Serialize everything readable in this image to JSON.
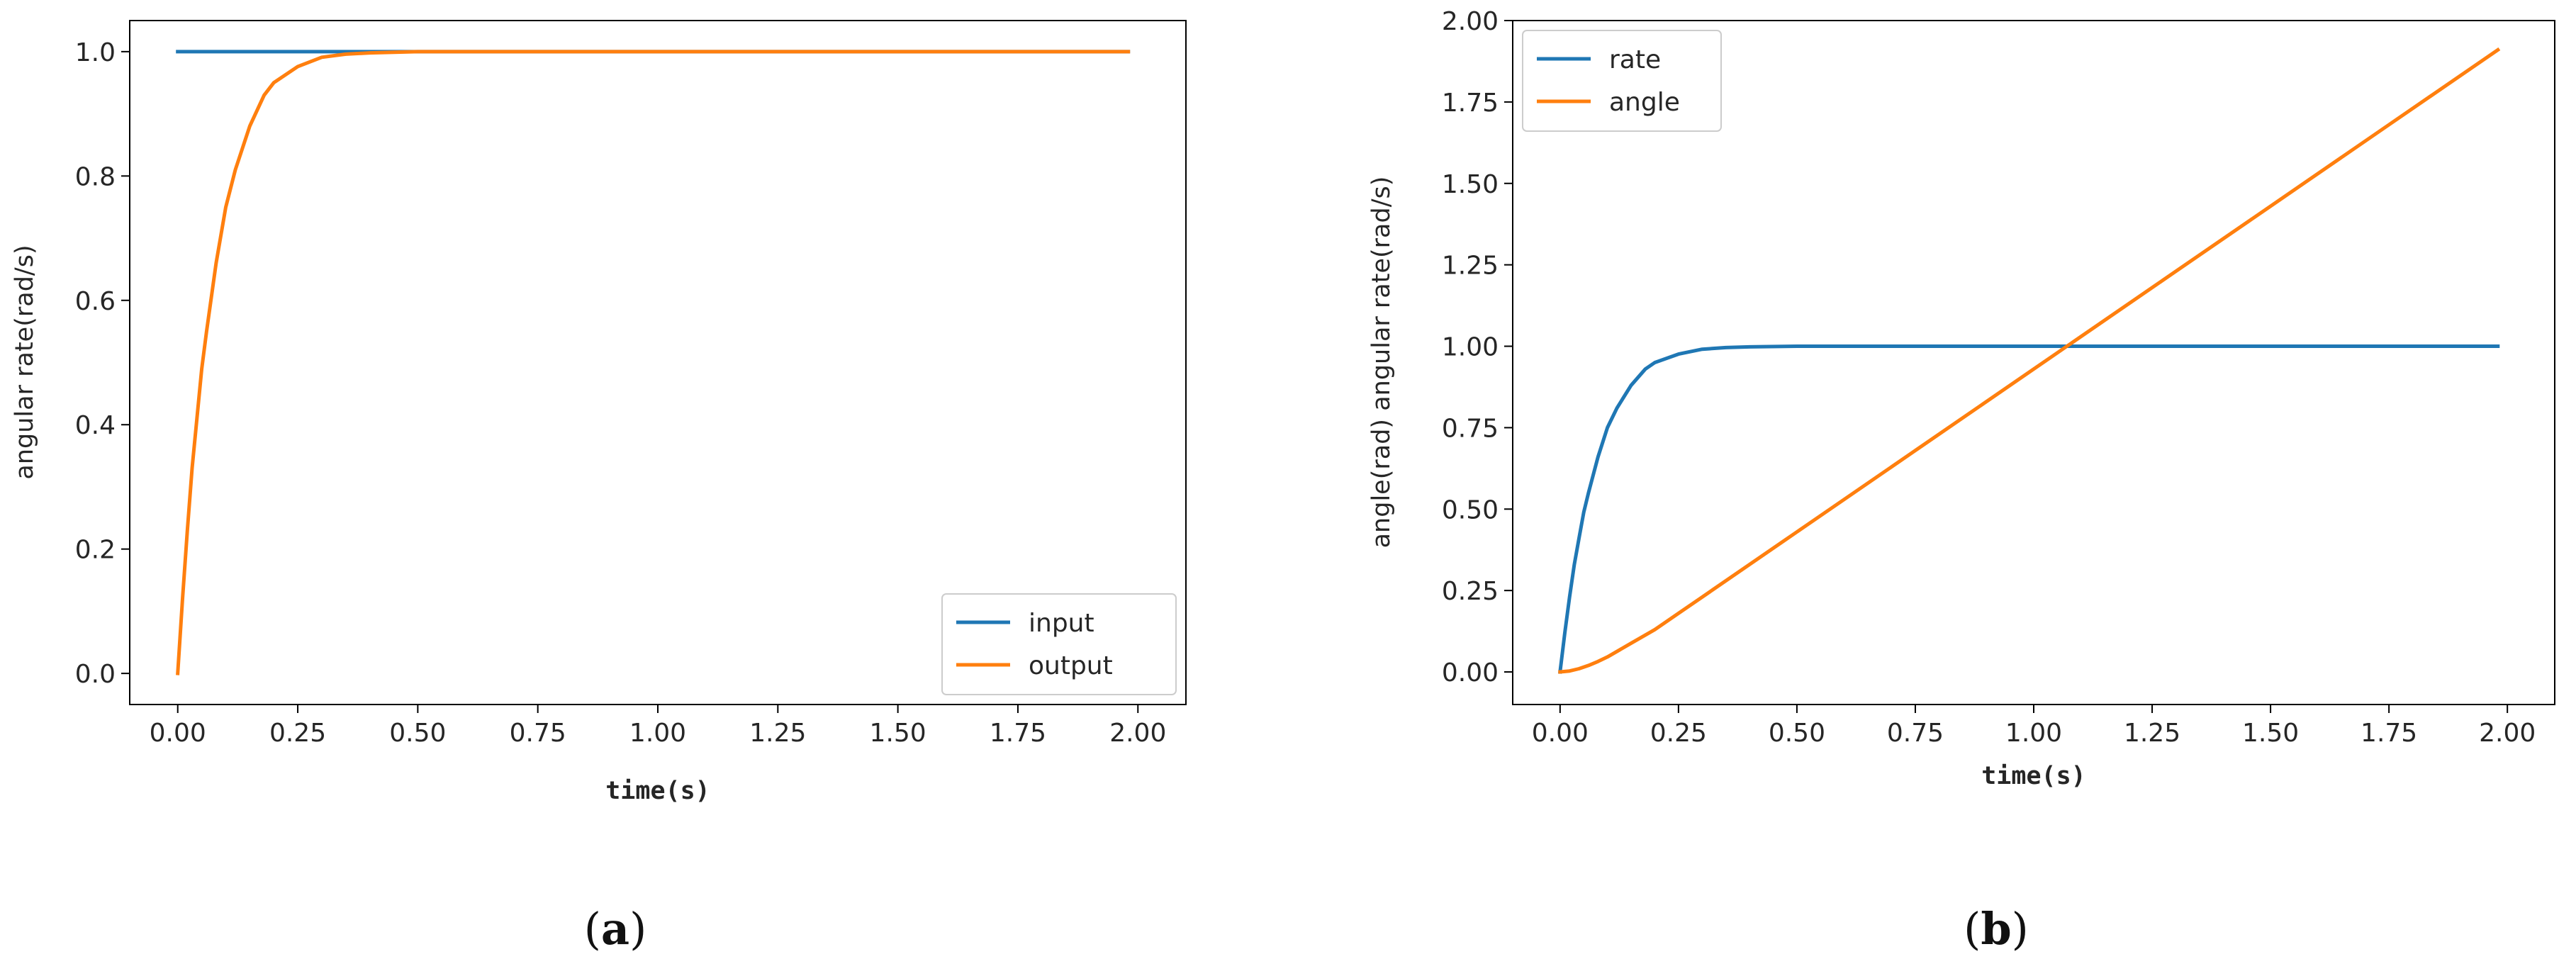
{
  "chart_data": [
    {
      "panel": "(a)",
      "type": "line",
      "title": "",
      "xlabel": "time(s)",
      "ylabel": "angular rate(rad/s)",
      "xlim": [
        -0.1,
        2.1
      ],
      "ylim": [
        -0.05,
        1.05
      ],
      "xticks": [
        0.0,
        0.25,
        0.5,
        0.75,
        1.0,
        1.25,
        1.5,
        1.75,
        2.0
      ],
      "xtick_labels": [
        "0.00",
        "0.25",
        "0.50",
        "0.75",
        "1.00",
        "1.25",
        "1.50",
        "1.75",
        "2.00"
      ],
      "yticks": [
        0.0,
        0.2,
        0.4,
        0.6,
        0.8,
        1.0
      ],
      "ytick_labels": [
        "0.0",
        "0.2",
        "0.4",
        "0.6",
        "0.8",
        "1.0"
      ],
      "legend_position": "lower-right",
      "grid": false,
      "series": [
        {
          "name": "input",
          "color": "#1f77b4",
          "x": [
            0.0,
            0.25,
            0.5,
            0.75,
            1.0,
            1.25,
            1.5,
            1.75,
            1.98
          ],
          "y": [
            1.0,
            1.0,
            1.0,
            1.0,
            1.0,
            1.0,
            1.0,
            1.0,
            1.0
          ]
        },
        {
          "name": "output",
          "color": "#ff7f0e",
          "x": [
            0.0,
            0.01,
            0.02,
            0.03,
            0.04,
            0.05,
            0.06,
            0.08,
            0.1,
            0.12,
            0.15,
            0.18,
            0.2,
            0.25,
            0.3,
            0.35,
            0.4,
            0.5,
            0.6,
            0.75,
            1.0,
            1.5,
            1.98
          ],
          "y": [
            0.0,
            0.12,
            0.23,
            0.33,
            0.41,
            0.49,
            0.55,
            0.66,
            0.75,
            0.81,
            0.88,
            0.93,
            0.95,
            0.976,
            0.991,
            0.996,
            0.998,
            1.0,
            1.0,
            1.0,
            1.0,
            1.0,
            1.0
          ]
        }
      ]
    },
    {
      "panel": "(b)",
      "type": "line",
      "title": "",
      "xlabel": "time(s)",
      "ylabel": "angle(rad) angular rate(rad/s)",
      "xlim": [
        -0.1,
        2.1
      ],
      "ylim": [
        -0.1,
        2.0
      ],
      "xticks": [
        0.0,
        0.25,
        0.5,
        0.75,
        1.0,
        1.25,
        1.5,
        1.75,
        2.0
      ],
      "xtick_labels": [
        "0.00",
        "0.25",
        "0.50",
        "0.75",
        "1.00",
        "1.25",
        "1.50",
        "1.75",
        "2.00"
      ],
      "yticks": [
        0.0,
        0.25,
        0.5,
        0.75,
        1.0,
        1.25,
        1.5,
        1.75,
        2.0
      ],
      "ytick_labels": [
        "0.00",
        "0.25",
        "0.50",
        "0.75",
        "1.00",
        "1.25",
        "1.50",
        "1.75",
        "2.00"
      ],
      "legend_position": "upper-left",
      "grid": false,
      "series": [
        {
          "name": "rate",
          "color": "#1f77b4",
          "x": [
            0.0,
            0.01,
            0.02,
            0.03,
            0.04,
            0.05,
            0.06,
            0.08,
            0.1,
            0.12,
            0.15,
            0.18,
            0.2,
            0.25,
            0.3,
            0.35,
            0.4,
            0.5,
            0.75,
            1.0,
            1.5,
            1.98
          ],
          "y": [
            0.0,
            0.12,
            0.23,
            0.33,
            0.41,
            0.49,
            0.55,
            0.66,
            0.75,
            0.81,
            0.88,
            0.93,
            0.95,
            0.976,
            0.991,
            0.996,
            0.998,
            1.0,
            1.0,
            1.0,
            1.0,
            1.0
          ]
        },
        {
          "name": "angle",
          "color": "#ff7f0e",
          "x": [
            0.0,
            0.02,
            0.04,
            0.06,
            0.08,
            0.1,
            0.15,
            0.2,
            0.25,
            0.3,
            0.4,
            0.5,
            0.75,
            1.0,
            1.07,
            1.25,
            1.5,
            1.75,
            1.98
          ],
          "y": [
            0.0,
            0.003,
            0.01,
            0.02,
            0.032,
            0.046,
            0.088,
            0.13,
            0.18,
            0.23,
            0.33,
            0.43,
            0.68,
            0.93,
            1.0,
            1.18,
            1.43,
            1.68,
            1.91
          ]
        }
      ]
    }
  ]
}
